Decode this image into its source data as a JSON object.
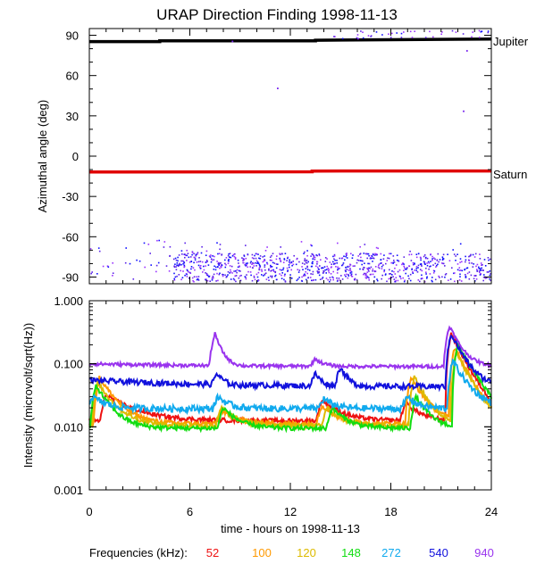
{
  "chart_data": [
    {
      "type": "scatter",
      "title": "URAP Direction Finding  1998-11-13",
      "ylabel": "Azimuthal angle (deg)",
      "xlim": [
        0,
        24
      ],
      "ylim": [
        -95,
        95
      ],
      "yticks": [
        90,
        60,
        30,
        0,
        -30,
        -60,
        -90
      ],
      "labels": [
        {
          "text": "Jupiter",
          "y": 87
        },
        {
          "text": "Saturn",
          "y": -11
        }
      ],
      "lines": [
        {
          "name": "Jupiter",
          "color": "#000000",
          "x": [
            0,
            4.2,
            4.2,
            13.5,
            13.5,
            24
          ],
          "y": [
            85.3,
            85.3,
            85.8,
            85.8,
            86.3,
            87.2
          ]
        },
        {
          "name": "Saturn",
          "color": "#e00000",
          "x": [
            0,
            13.3,
            13.3,
            24
          ],
          "y": [
            -11.8,
            -11.6,
            -11.1,
            -11.0
          ]
        }
      ],
      "scatter_colors": [
        "#1010ff",
        "#9933ff",
        "#5a22e8"
      ],
      "scatter_regions": [
        {
          "x0": 0.0,
          "x1": 8.0,
          "y0": -92,
          "y1": -62,
          "count": 60
        },
        {
          "x0": 5.0,
          "x1": 24.0,
          "y0": -93,
          "y1": -72,
          "count": 900
        },
        {
          "x0": 7.5,
          "x1": 23.5,
          "y0": -80,
          "y1": -63,
          "count": 40
        },
        {
          "x0": 14.0,
          "x1": 24.0,
          "y0": 88,
          "y1": 94,
          "count": 40
        }
      ],
      "scatter_points": [
        {
          "x": 11.2,
          "y": 51
        },
        {
          "x": 22.3,
          "y": 34
        },
        {
          "x": 22.5,
          "y": 79
        },
        {
          "x": 16.0,
          "y": 88
        },
        {
          "x": 8.5,
          "y": 86
        }
      ]
    },
    {
      "type": "line",
      "ylabel": "Intensity (microvolt/sqrt(Hz))",
      "xlabel": "time - hours on 1998-11-13",
      "xlim": [
        0,
        24
      ],
      "ylim": [
        0.001,
        1.0
      ],
      "yscale": "log",
      "xticks": [
        0,
        6,
        12,
        18,
        24
      ],
      "ytick_labels": [
        "1.000",
        "0.100",
        "0.010",
        "0.001"
      ],
      "legend_title": "Frequencies (kHz):",
      "legend": "bottom",
      "series": [
        {
          "name": "52",
          "color": "#ee1111",
          "base": 0.0125,
          "noise": 0.08,
          "bumps": [
            {
              "x": 1.0,
              "peak": 0.032,
              "w": 1.6
            },
            {
              "x": 7.6,
              "peak": 0.012,
              "w": 1.0
            },
            {
              "x": 13.9,
              "peak": 0.027,
              "w": 1.0
            },
            {
              "x": 18.9,
              "peak": 0.024,
              "w": 0.8
            },
            {
              "x": 21.6,
              "peak": 0.3,
              "w": 0.8
            }
          ]
        },
        {
          "name": "100",
          "color": "#ff9900",
          "base": 0.0112,
          "noise": 0.08,
          "bumps": [
            {
              "x": 0.6,
              "peak": 0.06,
              "w": 0.9
            },
            {
              "x": 7.9,
              "peak": 0.018,
              "w": 0.9
            },
            {
              "x": 13.9,
              "peak": 0.022,
              "w": 0.8
            },
            {
              "x": 19.2,
              "peak": 0.06,
              "w": 0.8
            },
            {
              "x": 21.8,
              "peak": 0.18,
              "w": 0.8
            }
          ]
        },
        {
          "name": "120",
          "color": "#ddbb00",
          "base": 0.0105,
          "noise": 0.08,
          "bumps": [
            {
              "x": 0.5,
              "peak": 0.05,
              "w": 0.9
            },
            {
              "x": 7.9,
              "peak": 0.02,
              "w": 0.8
            },
            {
              "x": 14.2,
              "peak": 0.02,
              "w": 0.8
            },
            {
              "x": 19.4,
              "peak": 0.062,
              "w": 0.7
            },
            {
              "x": 21.9,
              "peak": 0.15,
              "w": 0.8
            }
          ]
        },
        {
          "name": "148",
          "color": "#11dd11",
          "base": 0.0095,
          "noise": 0.08,
          "bumps": [
            {
              "x": 0.4,
              "peak": 0.045,
              "w": 0.8
            },
            {
              "x": 8.0,
              "peak": 0.02,
              "w": 0.8
            },
            {
              "x": 14.5,
              "peak": 0.02,
              "w": 0.8
            },
            {
              "x": 19.5,
              "peak": 0.03,
              "w": 0.7
            },
            {
              "x": 22.0,
              "peak": 0.2,
              "w": 0.9
            }
          ]
        },
        {
          "name": "272",
          "color": "#11aaee",
          "base": 0.0195,
          "noise": 0.12,
          "bumps": [
            {
              "x": 0.2,
              "peak": 0.03,
              "w": 0.8
            },
            {
              "x": 7.7,
              "peak": 0.03,
              "w": 0.6
            },
            {
              "x": 14.0,
              "peak": 0.028,
              "w": 0.6
            },
            {
              "x": 19.0,
              "peak": 0.03,
              "w": 0.6
            },
            {
              "x": 21.7,
              "peak": 0.11,
              "w": 0.8
            }
          ]
        },
        {
          "name": "540",
          "color": "#1111dd",
          "base": 0.043,
          "noise": 0.1,
          "bumps": [
            {
              "x": 0.0,
              "peak": 0.055,
              "w": 7.0
            },
            {
              "x": 7.6,
              "peak": 0.07,
              "w": 0.5
            },
            {
              "x": 13.5,
              "peak": 0.07,
              "w": 0.4
            },
            {
              "x": 15.0,
              "peak": 0.09,
              "w": 0.4
            },
            {
              "x": 21.6,
              "peak": 0.3,
              "w": 0.7
            }
          ]
        },
        {
          "name": "940",
          "color": "#9933ee",
          "base": 0.09,
          "noise": 0.06,
          "bumps": [
            {
              "x": 0.0,
              "peak": 0.1,
              "w": 7.0
            },
            {
              "x": 7.5,
              "peak": 0.3,
              "w": 0.4
            },
            {
              "x": 13.5,
              "peak": 0.12,
              "w": 0.5
            },
            {
              "x": 21.5,
              "peak": 0.4,
              "w": 0.6
            }
          ]
        }
      ]
    }
  ]
}
